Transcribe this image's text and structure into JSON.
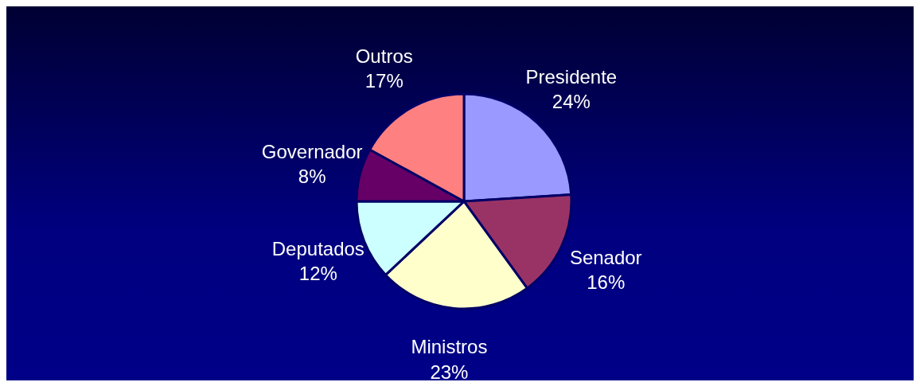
{
  "chart_data": {
    "type": "pie",
    "categories": [
      "Presidente",
      "Senador",
      "Ministros",
      "Deputados",
      "Governador",
      "Outros"
    ],
    "values": [
      24,
      16,
      23,
      12,
      8,
      17
    ],
    "colors": [
      "#9999ff",
      "#993366",
      "#ffffcc",
      "#ccffff",
      "#660066",
      "#ff8080"
    ],
    "value_labels": [
      "24%",
      "16%",
      "23%",
      "12%",
      "8%",
      "17%"
    ],
    "legend": false
  }
}
